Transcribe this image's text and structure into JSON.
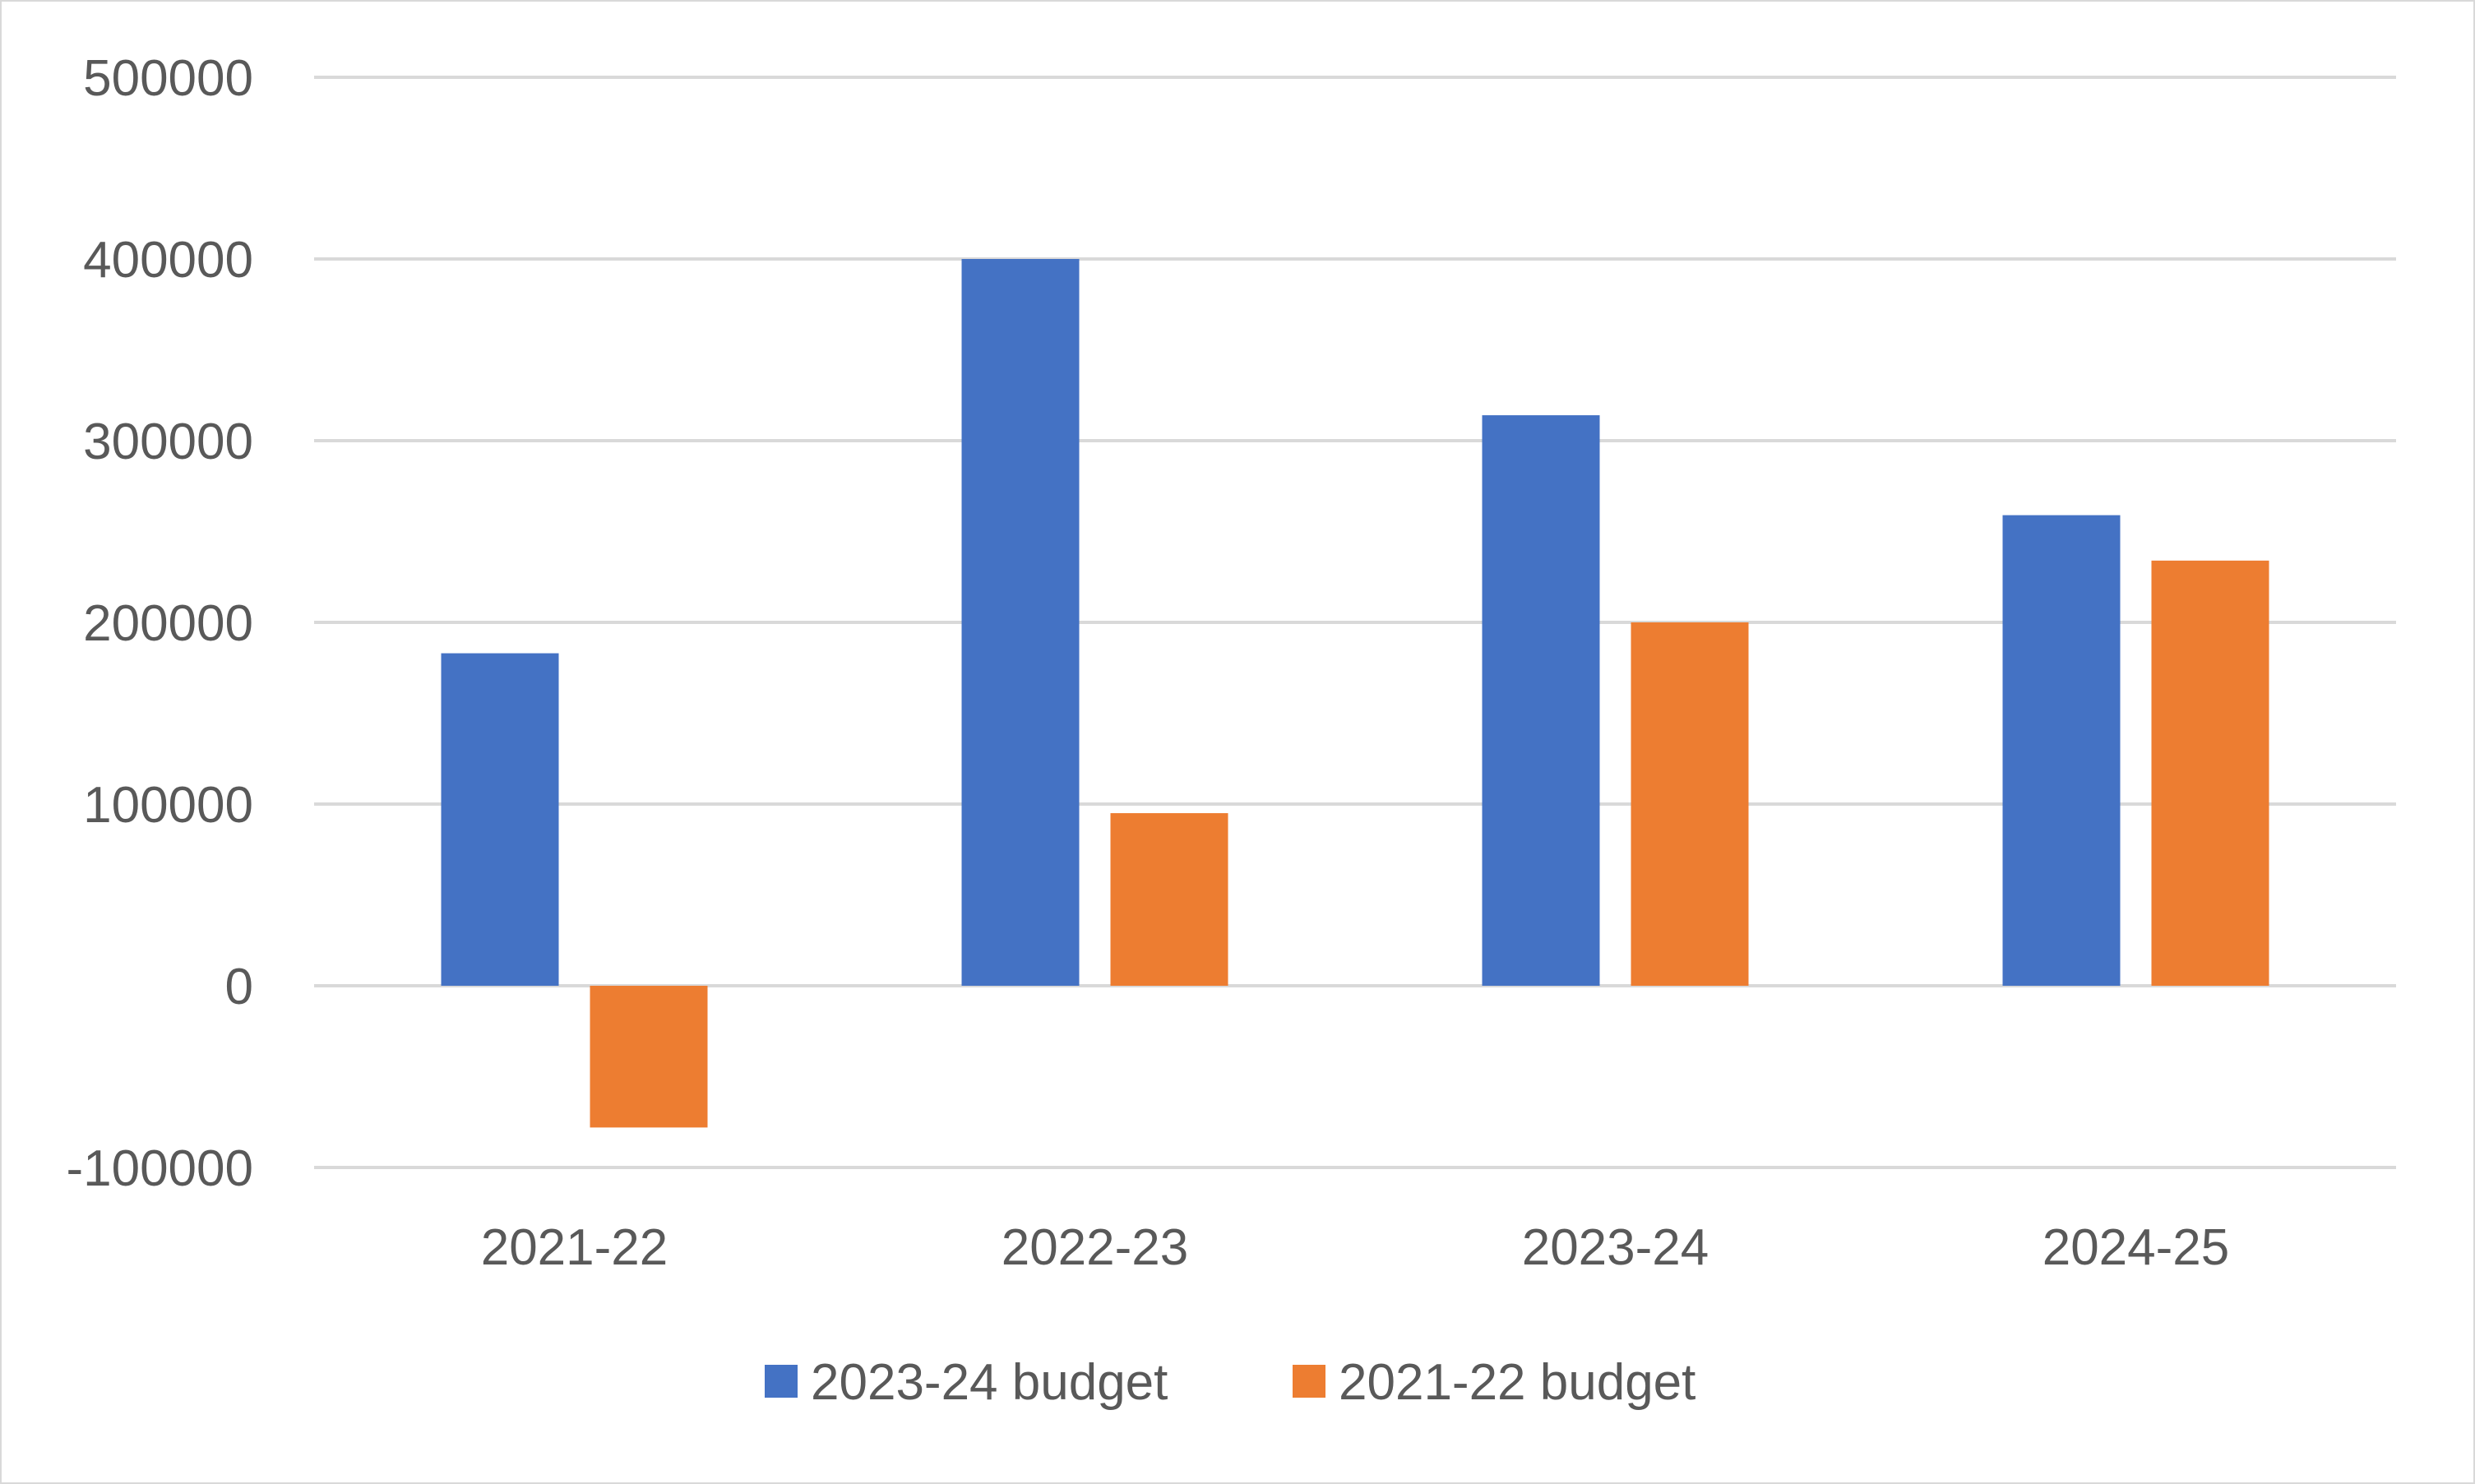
{
  "chart_data": {
    "type": "bar",
    "categories": [
      "2021-22",
      "2022-23",
      "2023-24",
      "2024-25"
    ],
    "series": [
      {
        "name": "2023-24 budget",
        "color": "#4472c4",
        "values": [
          183000,
          400000,
          314000,
          259000
        ]
      },
      {
        "name": "2021-22 budget",
        "color": "#ed7d31",
        "values": [
          -78000,
          95000,
          200000,
          234000
        ]
      }
    ],
    "ylim": [
      -100000,
      500000
    ],
    "yticks": [
      "500000",
      "400000",
      "300000",
      "200000",
      "100000",
      "0",
      "-100000"
    ],
    "ytick_values": [
      500000,
      400000,
      300000,
      200000,
      100000,
      0,
      -100000
    ],
    "grid": true,
    "legend_position": "bottom",
    "gridline_color": "#d9d9d9",
    "text_color": "#595959"
  }
}
